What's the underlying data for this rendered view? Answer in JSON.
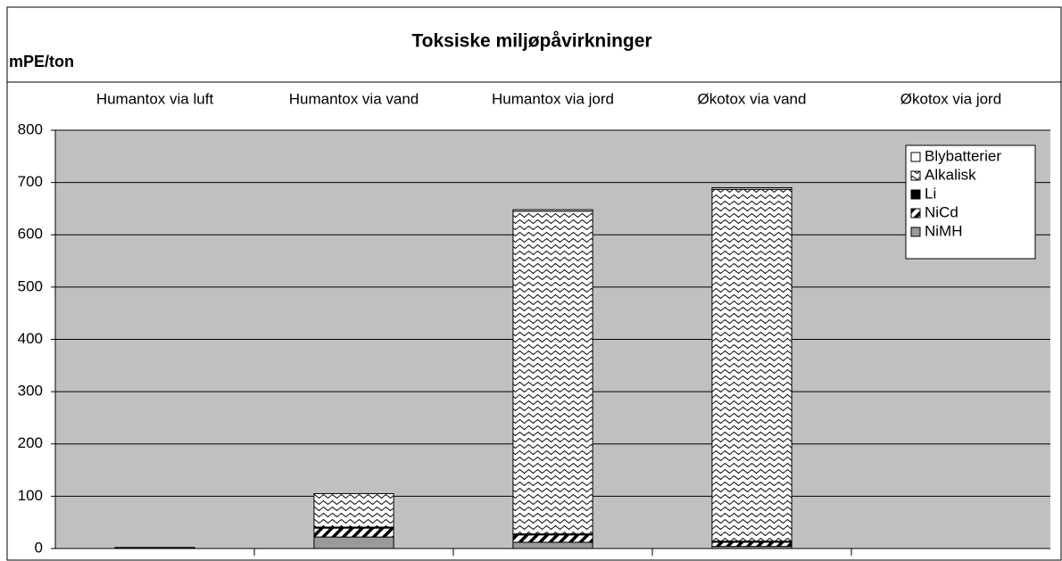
{
  "chart_data": {
    "type": "stacked_bar",
    "title": "Toksiske miljøpåvirkninger",
    "ylabel": "mPE/ton",
    "categories": [
      "Humantox via luft",
      "Humantox via vand",
      "Humantox via jord",
      "Økotox via vand",
      "Økotox via jord"
    ],
    "series": [
      {
        "name": "NiMH",
        "color": "#999999",
        "pattern": "solid",
        "values": [
          1,
          22,
          12,
          4,
          0
        ]
      },
      {
        "name": "NiCd",
        "color": "#000000",
        "pattern": "diagonal",
        "values": [
          0,
          17,
          14,
          8,
          0
        ]
      },
      {
        "name": "Li",
        "color": "#000000",
        "pattern": "solid",
        "values": [
          1,
          2,
          2,
          2,
          0
        ]
      },
      {
        "name": "Alkalisk",
        "color": "#000000",
        "pattern": "wave",
        "values": [
          0,
          64,
          617,
          673,
          0
        ]
      },
      {
        "name": "Blybatterier",
        "color": "#ffffff",
        "pattern": "solid",
        "values": [
          0,
          0,
          3,
          3,
          0
        ]
      }
    ],
    "ylim": [
      0,
      800
    ],
    "yticks": [
      0,
      100,
      200,
      300,
      400,
      500,
      600,
      700,
      800
    ],
    "grid": true,
    "legend": "upper right"
  }
}
